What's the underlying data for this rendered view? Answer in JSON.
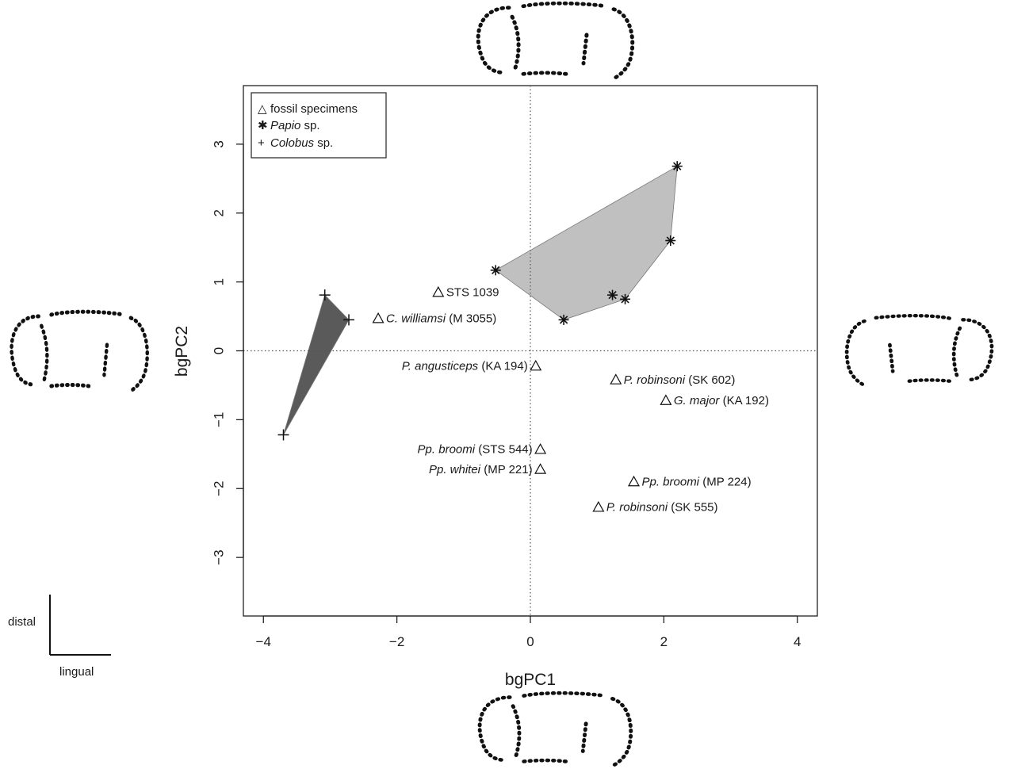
{
  "chart_data": {
    "type": "scatter",
    "xlabel": "bgPC1",
    "ylabel": "bgPC2",
    "xlim": [
      -4.3,
      4.3
    ],
    "ylim": [
      -3.85,
      3.85
    ],
    "xticks": [
      -4,
      -2,
      0,
      2,
      4
    ],
    "yticks": [
      -3,
      -2,
      -1,
      0,
      1,
      2,
      3
    ],
    "xtick_labels": [
      "−4",
      "−2",
      "0",
      "2",
      "4"
    ],
    "ytick_labels": [
      "−3",
      "−2",
      "−1",
      "0",
      "1",
      "2",
      "3"
    ],
    "reference_lines": {
      "x": 0,
      "y": 0,
      "style": "dotted"
    },
    "legend": {
      "placement": "top-left",
      "entries": [
        {
          "marker": "triangle",
          "symbol": "△",
          "italic": "",
          "text": "fossil specimens"
        },
        {
          "marker": "asterisk",
          "symbol": "✱",
          "italic": "Papio",
          "text": " sp."
        },
        {
          "marker": "plus",
          "symbol": "+",
          "italic": "Colobus",
          "text": " sp."
        }
      ]
    },
    "series": [
      {
        "name": "Papio sp.",
        "marker": "asterisk",
        "hull_color": "#c0c0c0",
        "points": [
          {
            "x": -0.52,
            "y": 1.17
          },
          {
            "x": 0.5,
            "y": 0.45
          },
          {
            "x": 1.23,
            "y": 0.81
          },
          {
            "x": 1.42,
            "y": 0.75
          },
          {
            "x": 2.1,
            "y": 1.6
          },
          {
            "x": 2.2,
            "y": 2.68
          }
        ],
        "hull": [
          [
            -0.52,
            1.17
          ],
          [
            2.2,
            2.68
          ],
          [
            2.1,
            1.6
          ],
          [
            1.42,
            0.75
          ],
          [
            0.5,
            0.45
          ]
        ]
      },
      {
        "name": "Colobus sp.",
        "marker": "plus",
        "hull_color": "#5a5a5a",
        "points": [
          {
            "x": -3.08,
            "y": 0.81
          },
          {
            "x": -2.72,
            "y": 0.45
          },
          {
            "x": -3.7,
            "y": -1.22
          }
        ],
        "hull": [
          [
            -3.08,
            0.81
          ],
          [
            -2.72,
            0.45
          ],
          [
            -3.7,
            -1.22
          ]
        ]
      },
      {
        "name": "fossil specimens",
        "marker": "triangle",
        "points": [
          {
            "x": -1.38,
            "y": 0.85,
            "italic": "",
            "text": "STS 1039",
            "side": "right"
          },
          {
            "x": -2.28,
            "y": 0.47,
            "italic": "C. williamsi",
            "text": " (M 3055)",
            "side": "right"
          },
          {
            "x": 0.08,
            "y": -0.22,
            "italic": "P. angusticeps",
            "text": " (KA 194)",
            "side": "left"
          },
          {
            "x": 1.28,
            "y": -0.42,
            "italic": "P. robinsoni",
            "text": " (SK 602)",
            "side": "right"
          },
          {
            "x": 2.03,
            "y": -0.72,
            "italic": "G. major",
            "text": " (KA 192)",
            "side": "right"
          },
          {
            "x": 0.15,
            "y": -1.43,
            "italic": "Pp. broomi",
            "text": " (STS 544)",
            "side": "left"
          },
          {
            "x": 0.15,
            "y": -1.72,
            "italic": "Pp. whitei",
            "text": " (MP 221)",
            "side": "left"
          },
          {
            "x": 1.55,
            "y": -1.9,
            "italic": "Pp. broomi",
            "text": " (MP 224)",
            "side": "right"
          },
          {
            "x": 1.02,
            "y": -2.27,
            "italic": "P. robinsoni",
            "text": " (SK 555)",
            "side": "right"
          }
        ]
      }
    ]
  },
  "orientation": {
    "vertical": "distal",
    "horizontal": "lingual"
  }
}
